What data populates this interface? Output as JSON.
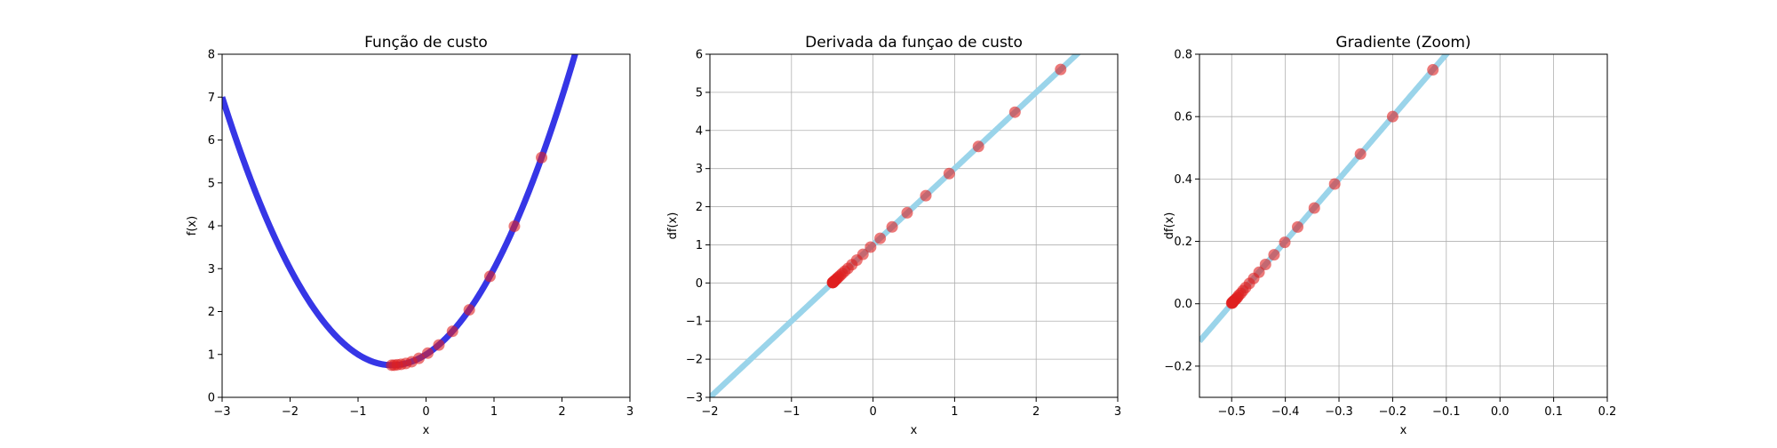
{
  "chart_data": [
    {
      "type": "line",
      "title": "Função de custo",
      "xlabel": "x",
      "ylabel": "f(x)",
      "xlim": [
        -3,
        3
      ],
      "ylim": [
        0,
        8
      ],
      "xticks": [
        "−3",
        "−2",
        "−1",
        "0",
        "1",
        "2",
        "3"
      ],
      "yticks": [
        "0",
        "1",
        "2",
        "3",
        "4",
        "5",
        "6",
        "7",
        "8"
      ],
      "grid": false,
      "curve": {
        "formula": "x^2 + x + 1",
        "color": "#3636e6"
      },
      "points": {
        "x": [
          1.7,
          1.3,
          0.94,
          0.636,
          0.389,
          0.189,
          0.026,
          -0.105,
          -0.211,
          -0.297,
          -0.367,
          -0.423,
          -0.468,
          -0.505
        ],
        "y": [
          5.59,
          3.99,
          2.82,
          2.04,
          1.54,
          1.22,
          1.03,
          0.91,
          0.83,
          0.79,
          0.77,
          0.76,
          0.75,
          0.75
        ],
        "color": "#e02020"
      }
    },
    {
      "type": "line",
      "title": "Derivada da funçao de custo",
      "xlabel": "x",
      "ylabel": "df(x)",
      "xlim": [
        -2,
        3
      ],
      "ylim": [
        -3,
        6
      ],
      "xticks": [
        "−2",
        "−1",
        "0",
        "1",
        "2",
        "3"
      ],
      "yticks": [
        "−3",
        "−2",
        "−1",
        "0",
        "1",
        "2",
        "3",
        "4",
        "5",
        "6"
      ],
      "grid": true,
      "curve": {
        "formula": "2x + 1",
        "color": "#9ad4ea"
      },
      "points": {
        "x": [
          2.3,
          1.74,
          1.292,
          0.934,
          0.647,
          0.418,
          0.234,
          0.087,
          -0.03,
          -0.124,
          -0.199,
          -0.259,
          -0.308,
          -0.346,
          -0.377,
          -0.401,
          -0.421,
          -0.437,
          -0.449,
          -0.459,
          -0.467,
          -0.474,
          -0.479,
          -0.483,
          -0.487,
          -0.489,
          -0.491,
          -0.493,
          -0.495,
          -0.496
        ],
        "y": [
          5.6,
          4.48,
          3.58,
          2.87,
          2.29,
          1.84,
          1.47,
          1.17,
          0.94,
          0.75,
          0.6,
          0.48,
          0.38,
          0.31,
          0.25,
          0.2,
          0.16,
          0.13,
          0.1,
          0.08,
          0.07,
          0.05,
          0.04,
          0.03,
          0.03,
          0.02,
          0.02,
          0.01,
          0.01,
          0.01
        ],
        "color": "#e02020"
      }
    },
    {
      "type": "line",
      "title": "Gradiente (Zoom)",
      "xlabel": "x",
      "ylabel": "df(x)",
      "xlim": [
        -0.56,
        0.2
      ],
      "ylim": [
        -0.3,
        0.8
      ],
      "xticks": [
        "−0.5",
        "−0.4",
        "−0.3",
        "−0.2",
        "−0.1",
        "0.0",
        "0.1",
        "0.2"
      ],
      "yticks": [
        "−0.2",
        "0.0",
        "0.2",
        "0.4",
        "0.6",
        "0.8"
      ],
      "grid": true,
      "curve": {
        "formula": "2x + 1",
        "color": "#9ad4ea"
      },
      "points": {
        "x": [
          -0.125,
          -0.2,
          -0.26,
          -0.308,
          -0.346,
          -0.377,
          -0.401,
          -0.421,
          -0.437,
          -0.449,
          -0.459,
          -0.467,
          -0.474,
          -0.479,
          -0.483,
          -0.487,
          -0.489,
          -0.491,
          -0.493,
          -0.495,
          -0.496,
          -0.497,
          -0.498,
          -0.498,
          -0.499,
          -0.499,
          -0.499,
          -0.5
        ],
        "y": [
          0.75,
          0.6,
          0.48,
          0.384,
          0.307,
          0.246,
          0.197,
          0.157,
          0.126,
          0.101,
          0.081,
          0.065,
          0.052,
          0.042,
          0.033,
          0.027,
          0.021,
          0.017,
          0.014,
          0.011,
          0.009,
          0.007,
          0.006,
          0.004,
          0.004,
          0.003,
          0.002,
          0.002
        ],
        "color": "#e02020"
      }
    }
  ]
}
